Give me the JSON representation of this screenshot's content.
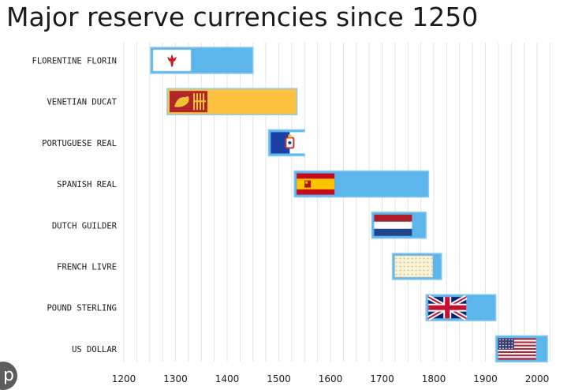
{
  "chart_data": {
    "type": "bar",
    "subtype": "horizontal-floating-timeline",
    "title": "Major reserve currencies since 1250",
    "xlabel": "",
    "ylabel": "",
    "xlim": [
      1200,
      2020
    ],
    "x_ticks": [
      1200,
      1300,
      1400,
      1500,
      1600,
      1700,
      1800,
      1900,
      2000
    ],
    "grid": "vertical, every 25 years",
    "legend": "none",
    "colors": {
      "bar_blue": "#5cb6ec",
      "bar_orange": "#fdc140",
      "bar_border": "#8bcaf0",
      "grid": "#e3e3e3",
      "text": "#1b1b1b"
    },
    "series": [
      {
        "label": "FLORENTINE FLORIN",
        "start": 1252,
        "end": 1450,
        "color": "#5cb6ec",
        "flag": "florence-lily-flag-icon"
      },
      {
        "label": "VENETIAN DUCAT",
        "start": 1284,
        "end": 1535,
        "color": "#fdc140",
        "flag": "venice-lion-flag-icon"
      },
      {
        "label": "PORTUGUESE REAL",
        "start": 1480,
        "end": 1550,
        "color": "#5cb6ec",
        "flag": "portugal-royal-flag-icon"
      },
      {
        "label": "SPANISH REAL",
        "start": 1530,
        "end": 1790,
        "color": "#5cb6ec",
        "flag": "spain-flag-icon"
      },
      {
        "label": "DUTCH GUILDER",
        "start": 1680,
        "end": 1785,
        "color": "#5cb6ec",
        "flag": "netherlands-flag-icon"
      },
      {
        "label": "FRENCH LIVRE",
        "start": 1720,
        "end": 1815,
        "color": "#5cb6ec",
        "flag": "france-royal-flag-icon"
      },
      {
        "label": "POUND STERLING",
        "start": 1785,
        "end": 1920,
        "color": "#5cb6ec",
        "flag": "union-jack-flag-icon"
      },
      {
        "label": "US DOLLAR",
        "start": 1920,
        "end": 2020,
        "color": "#5cb6ec",
        "flag": "us-flag-icon"
      }
    ]
  },
  "corner_badge": "p"
}
